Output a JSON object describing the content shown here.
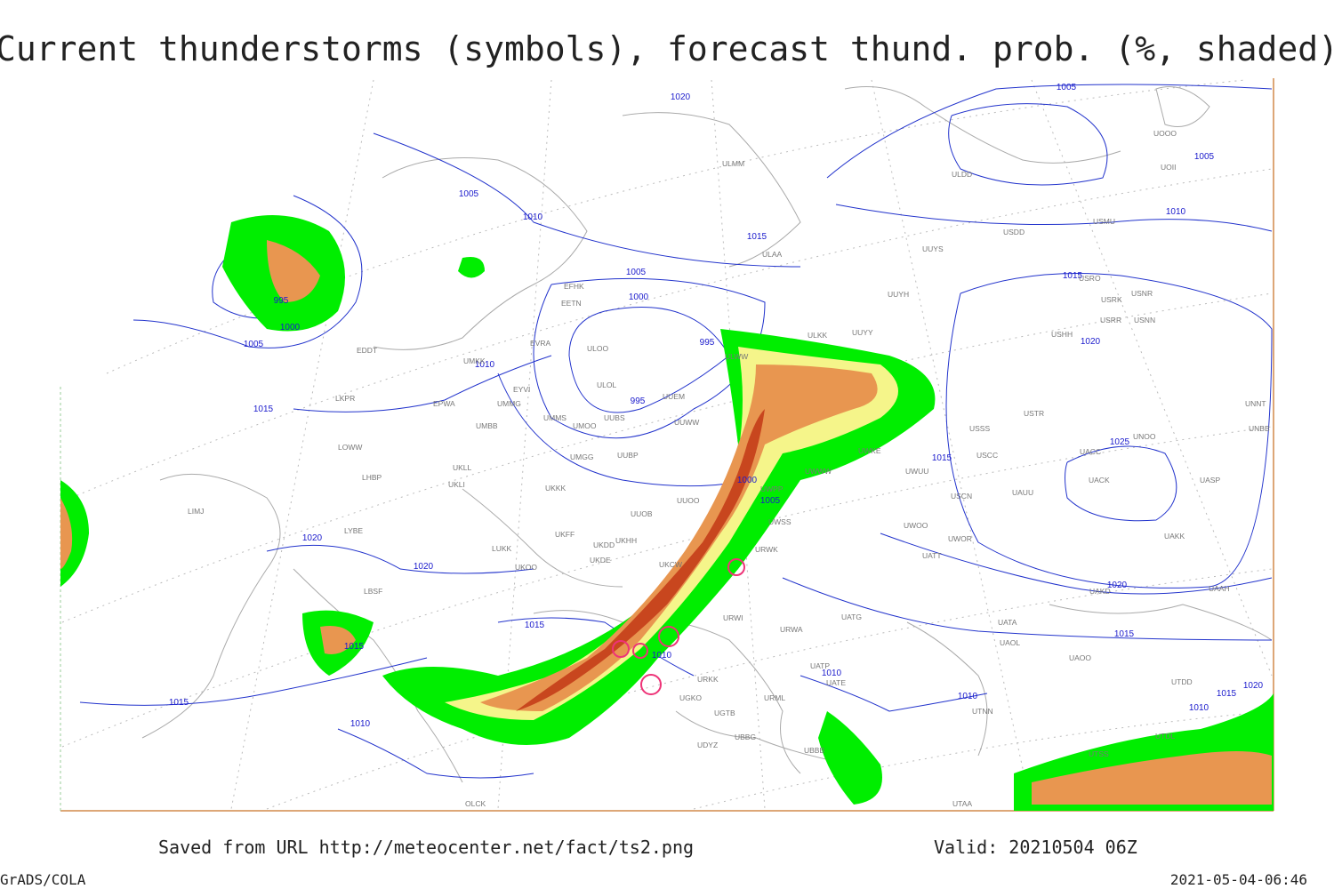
{
  "title": "Current thunderstorms (symbols), forecast thund. prob. (%, shaded)",
  "footer": {
    "source": "Saved from URL http://meteocenter.net/fact/ts2.png",
    "valid": "Valid: 20210504 06Z",
    "software": "GrADS/COLA",
    "timestamp": "2021-05-04-06:46"
  },
  "isobar_labels": [
    1020,
    1005,
    1010,
    1015,
    995,
    1000,
    1005,
    1005,
    1005,
    1010,
    1015,
    1020,
    1005,
    1000,
    995,
    1010,
    995,
    1015,
    1025,
    1015,
    1000,
    1005,
    1020,
    1020,
    1020,
    1015,
    1015,
    1010,
    1015,
    1010,
    1015,
    1010,
    1010,
    1015,
    1020,
    1010
  ],
  "station_labels": [
    "ULMM",
    "ULDD",
    "UOOO",
    "UOII",
    "USDD",
    "USMU",
    "UUYS",
    "ULAA",
    "UUYH",
    "USRO",
    "USRK",
    "USNR",
    "USRR",
    "USNN",
    "USHH",
    "UUYY",
    "ULKK",
    "ULWW",
    "ULOO",
    "EVRA",
    "EFHK",
    "EETN",
    "UMKK",
    "EDDT",
    "EYVI",
    "ULOL",
    "UUEM",
    "UMMG",
    "UMMS",
    "UUBS",
    "UUWW",
    "EPWA",
    "LKPR",
    "UMBB",
    "UMOO",
    "LOWW",
    "LHBP",
    "UKLL",
    "UKLI",
    "UMGG",
    "UUBP",
    "USSS",
    "USTR",
    "USCC",
    "UWKE",
    "UWWW",
    "UWPP",
    "UWUU",
    "UACK",
    "UACC",
    "UAUU",
    "USCN",
    "UASP",
    "UNOO",
    "UNBB",
    "UNNT",
    "UWSS",
    "UUOO",
    "UKKK",
    "UUOB",
    "LIMJ",
    "LYBE",
    "UKHH",
    "UKFF",
    "UKDD",
    "UKDE",
    "LUKK",
    "UKOO",
    "UKCW",
    "URWK",
    "UWOO",
    "UWOR",
    "UATT",
    "UAKK",
    "UAKD",
    "UAAH",
    "UATG",
    "URWI",
    "URWA",
    "UATA",
    "UAOL",
    "UAOO",
    "LBSF",
    "URKK",
    "UATP",
    "UATE",
    "URML",
    "UTNN",
    "UTDD",
    "UTSS",
    "UTDL",
    "UBBB",
    "UBBG",
    "UGTB",
    "UDYZ",
    "UGKO",
    "UTAA",
    "OLCK"
  ]
}
